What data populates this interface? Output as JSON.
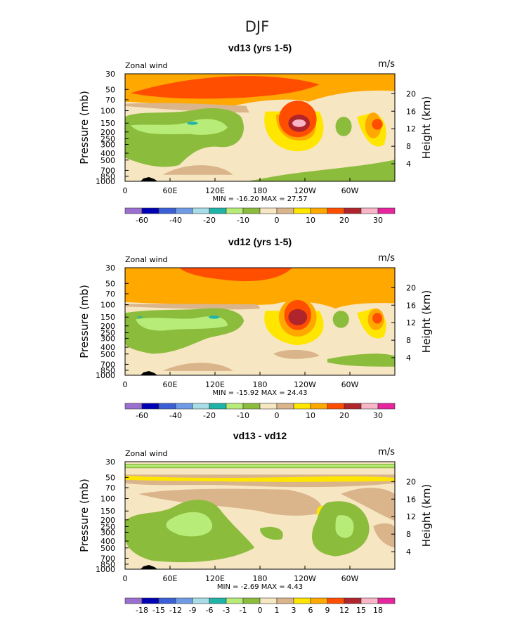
{
  "figure_title": "DJF",
  "colors": {
    "white": "#ffffff",
    "purple": "#9b6fd0",
    "navy": "#0000b4",
    "blue": "#3a5fd6",
    "cornflower": "#6f9be6",
    "lightblue": "#a8dce6",
    "teal": "#20b4a8",
    "lightgreen": "#b8ec78",
    "green": "#8cbc3c",
    "cream": "#f6e6c2",
    "tan": "#dab48a",
    "yellow": "#ffe600",
    "orange": "#ffa800",
    "redorange": "#ff4e00",
    "darkred": "#b0252c",
    "pink": "#f8b6c6",
    "magenta": "#e6259e"
  },
  "chart_data": [
    {
      "type": "contour",
      "title": "vd13 (yrs 1-5)",
      "left_label": "Zonal wind",
      "right_label": "m/s",
      "ylabel": "Pressure (mb)",
      "ylabel_right": "Height (km)",
      "x_ticks": [
        "0",
        "60E",
        "120E",
        "180",
        "120W",
        "60W"
      ],
      "x_tick_lon": [
        0,
        60,
        120,
        180,
        240,
        300
      ],
      "x_range": [
        0,
        360
      ],
      "y_ticks": [
        "30",
        "50",
        "70",
        "100",
        "150",
        "200",
        "250",
        "300",
        "400",
        "500",
        "700",
        "850",
        "1000"
      ],
      "y_tick_p": [
        30,
        50,
        70,
        100,
        150,
        200,
        250,
        300,
        400,
        500,
        700,
        850,
        1000
      ],
      "y_range": [
        30,
        1000
      ],
      "height_ticks": [
        "20",
        "16",
        "12",
        "8",
        "4"
      ],
      "height_tick_km": [
        20,
        16,
        12,
        8,
        4
      ],
      "stats_text": "MIN = -16.20   MAX =   27.57",
      "min": -16.2,
      "max": 27.57,
      "colorbar": {
        "colors": [
          "purple",
          "navy",
          "blue",
          "cornflower",
          "lightblue",
          "teal",
          "lightgreen",
          "green",
          "cream",
          "tan",
          "yellow",
          "orange",
          "redorange",
          "darkred",
          "pink",
          "magenta"
        ],
        "labels": [
          "-60",
          "-40",
          "-20",
          "-10",
          "0",
          "10",
          "20",
          "30"
        ],
        "label_boundaries": [
          1,
          3,
          5,
          7,
          9,
          11,
          13,
          15
        ]
      }
    },
    {
      "type": "contour",
      "title": "vd12 (yrs 1-5)",
      "left_label": "Zonal wind",
      "right_label": "m/s",
      "ylabel": "Pressure (mb)",
      "ylabel_right": "Height (km)",
      "x_ticks": [
        "0",
        "60E",
        "120E",
        "180",
        "120W",
        "60W"
      ],
      "x_tick_lon": [
        0,
        60,
        120,
        180,
        240,
        300
      ],
      "x_range": [
        0,
        360
      ],
      "y_ticks": [
        "30",
        "50",
        "70",
        "100",
        "150",
        "200",
        "250",
        "300",
        "400",
        "500",
        "700",
        "850",
        "1000"
      ],
      "y_tick_p": [
        30,
        50,
        70,
        100,
        150,
        200,
        250,
        300,
        400,
        500,
        700,
        850,
        1000
      ],
      "y_range": [
        30,
        1000
      ],
      "height_ticks": [
        "20",
        "16",
        "12",
        "8",
        "4"
      ],
      "height_tick_km": [
        20,
        16,
        12,
        8,
        4
      ],
      "stats_text": "MIN = -15.92   MAX =   24.43",
      "min": -15.92,
      "max": 24.43,
      "colorbar": {
        "colors": [
          "purple",
          "navy",
          "blue",
          "cornflower",
          "lightblue",
          "teal",
          "lightgreen",
          "green",
          "cream",
          "tan",
          "yellow",
          "orange",
          "redorange",
          "darkred",
          "pink",
          "magenta"
        ],
        "labels": [
          "-60",
          "-40",
          "-20",
          "-10",
          "0",
          "10",
          "20",
          "30"
        ],
        "label_boundaries": [
          1,
          3,
          5,
          7,
          9,
          11,
          13,
          15
        ]
      }
    },
    {
      "type": "contour",
      "title": "vd13 - vd12",
      "left_label": "Zonal wind",
      "right_label": "m/s",
      "ylabel": "Pressure (mb)",
      "ylabel_right": "Height (km)",
      "x_ticks": [
        "0",
        "60E",
        "120E",
        "180",
        "120W",
        "60W"
      ],
      "x_tick_lon": [
        0,
        60,
        120,
        180,
        240,
        300
      ],
      "x_range": [
        0,
        360
      ],
      "y_ticks": [
        "30",
        "50",
        "70",
        "100",
        "150",
        "200",
        "250",
        "300",
        "400",
        "500",
        "700",
        "850",
        "1000"
      ],
      "y_tick_p": [
        30,
        50,
        70,
        100,
        150,
        200,
        250,
        300,
        400,
        500,
        700,
        850,
        1000
      ],
      "y_range": [
        30,
        1000
      ],
      "height_ticks": [
        "20",
        "16",
        "12",
        "8",
        "4"
      ],
      "height_tick_km": [
        20,
        16,
        12,
        8,
        4
      ],
      "stats_text": "MIN =  -2.69   MAX =    4.43",
      "min": -2.69,
      "max": 4.43,
      "colorbar": {
        "colors": [
          "purple",
          "navy",
          "blue",
          "cornflower",
          "lightblue",
          "teal",
          "lightgreen",
          "green",
          "cream",
          "tan",
          "yellow",
          "orange",
          "redorange",
          "darkred",
          "pink",
          "magenta"
        ],
        "labels": [
          "-18",
          "-15",
          "-12",
          "-9",
          "-6",
          "-3",
          "-1",
          "0",
          "1",
          "3",
          "6",
          "9",
          "12",
          "15",
          "18"
        ],
        "label_boundaries": [
          1,
          2,
          3,
          4,
          5,
          6,
          7,
          8,
          9,
          10,
          11,
          12,
          13,
          14,
          15
        ]
      }
    }
  ]
}
